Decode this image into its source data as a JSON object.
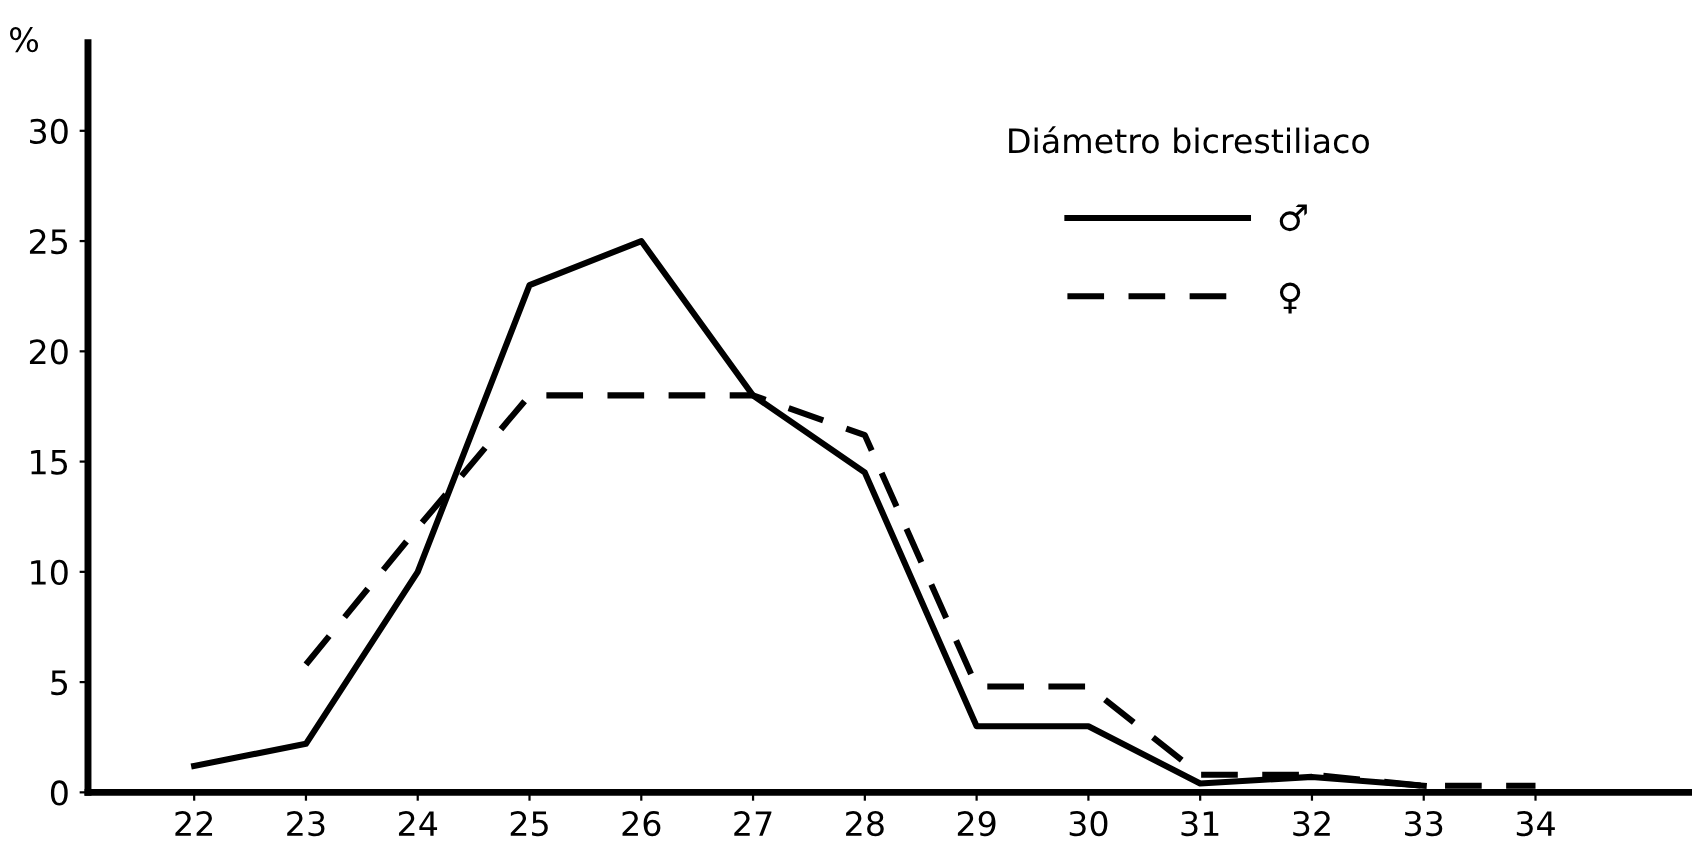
{
  "chart_data": {
    "type": "line",
    "ylabel": "%",
    "legend_title": "Diámetro bicrestiliaco",
    "x": [
      22,
      23,
      24,
      25,
      26,
      27,
      28,
      29,
      30,
      31,
      32,
      33,
      34
    ],
    "series": [
      {
        "name": "♂",
        "color": "#000000",
        "line_style": "solid",
        "values": [
          1.2,
          2.2,
          10,
          23,
          25,
          18,
          14.5,
          3,
          3,
          0.4,
          0.7,
          0.3,
          null
        ]
      },
      {
        "name": "♀",
        "color": "#000000",
        "line_style": "dashed",
        "values": [
          null,
          5.8,
          12,
          18,
          18,
          18,
          16.2,
          4.8,
          4.8,
          0.8,
          0.8,
          0.3,
          0.3
        ]
      }
    ],
    "xlim": [
      21.05,
      35.4
    ],
    "ylim": [
      0,
      34
    ],
    "xticks": [
      22,
      23,
      24,
      25,
      26,
      27,
      28,
      29,
      30,
      31,
      32,
      33,
      34
    ],
    "yticks": [
      0,
      5,
      10,
      15,
      20,
      25,
      30
    ],
    "grid": false,
    "legend": "top right",
    "marker": "none"
  }
}
